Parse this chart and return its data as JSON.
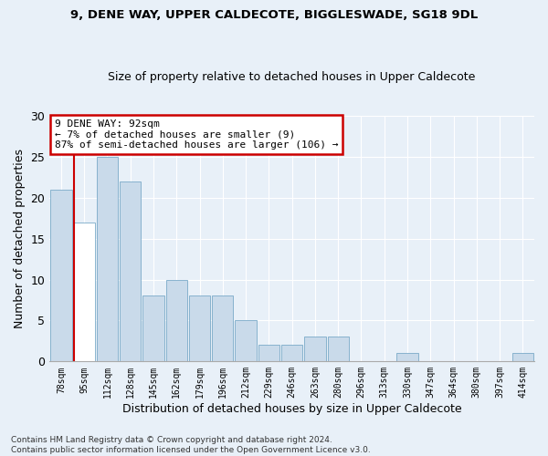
{
  "title1": "9, DENE WAY, UPPER CALDECOTE, BIGGLESWADE, SG18 9DL",
  "title2": "Size of property relative to detached houses in Upper Caldecote",
  "xlabel": "Distribution of detached houses by size in Upper Caldecote",
  "ylabel": "Number of detached properties",
  "categories": [
    "78sqm",
    "95sqm",
    "112sqm",
    "128sqm",
    "145sqm",
    "162sqm",
    "179sqm",
    "196sqm",
    "212sqm",
    "229sqm",
    "246sqm",
    "263sqm",
    "280sqm",
    "296sqm",
    "313sqm",
    "330sqm",
    "347sqm",
    "364sqm",
    "380sqm",
    "397sqm",
    "414sqm"
  ],
  "values": [
    21,
    17,
    25,
    22,
    8,
    10,
    8,
    8,
    5,
    2,
    2,
    3,
    3,
    0,
    0,
    1,
    0,
    0,
    0,
    0,
    1
  ],
  "bar_color": "#c9daea",
  "bar_edge_color": "#7aaac8",
  "highlight_bar_index": 1,
  "highlight_color": "#ffffff",
  "vline_color": "#cc0000",
  "annotation_text": "9 DENE WAY: 92sqm\n← 7% of detached houses are smaller (9)\n87% of semi-detached houses are larger (106) →",
  "annotation_box_color": "#ffffff",
  "annotation_border_color": "#cc0000",
  "ylim": [
    0,
    30
  ],
  "yticks": [
    0,
    5,
    10,
    15,
    20,
    25,
    30
  ],
  "footnote": "Contains HM Land Registry data © Crown copyright and database right 2024.\nContains public sector information licensed under the Open Government Licence v3.0.",
  "bg_color": "#e8f0f8",
  "plot_bg_color": "#e8f0f8",
  "grid_color": "#ffffff",
  "title1_fontsize": 9.5,
  "title2_fontsize": 9.0
}
